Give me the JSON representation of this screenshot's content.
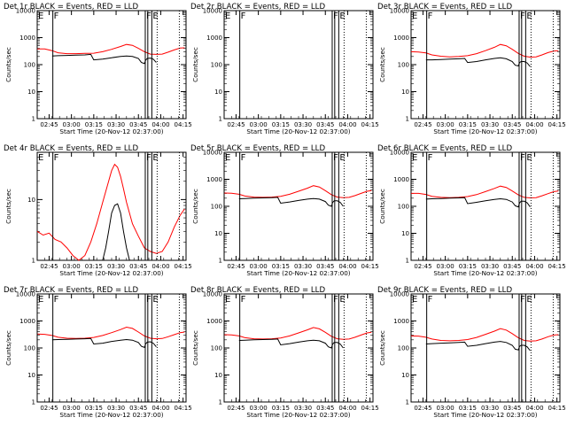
{
  "colors": {
    "events": "#000000",
    "lld": "#ff0000",
    "background": "#ffffff"
  },
  "common": {
    "xlabel": "Start Time (20-Nov-12 02:37:00)",
    "ylabel": "Counts/sec",
    "x_ticks": [
      "02:45",
      "03:00",
      "03:15",
      "03:30",
      "03:45",
      "04:00",
      "04:15"
    ],
    "x_tick_minutes": [
      8,
      23,
      38,
      53,
      68,
      83,
      98
    ],
    "x_range_minutes": [
      0,
      100
    ],
    "markers": [
      {
        "label": "E",
        "minute": 0.0,
        "style": "dotted"
      },
      {
        "label": "F",
        "minute": 10.5,
        "style": "solid"
      },
      {
        "label": "F",
        "minute": 72.6,
        "style": "solid"
      },
      {
        "label": "E",
        "minute": 77.0,
        "style": "solid"
      },
      {
        "label": "",
        "minute": 74.3,
        "style": "solid"
      },
      {
        "label": "",
        "minute": 80.6,
        "style": "dotted"
      },
      {
        "label": "",
        "minute": 95.5,
        "style": "dotted"
      }
    ]
  },
  "chart_data": [
    {
      "type": "line",
      "title": "Det 1r  BLACK = Events, RED = LLD",
      "yscale": "log",
      "ylim": [
        1,
        10000
      ],
      "y_ticks": [
        "1",
        "10",
        "100",
        "1000",
        "10000"
      ],
      "series": [
        {
          "role": "lld",
          "x": [
            0,
            5,
            10,
            14,
            20,
            26,
            32,
            38,
            44,
            50,
            56,
            60,
            64,
            68,
            72,
            76,
            80,
            84,
            88,
            92,
            96,
            99
          ],
          "y": [
            380,
            380,
            330,
            275,
            255,
            255,
            260,
            265,
            300,
            370,
            470,
            560,
            520,
            400,
            300,
            245,
            240,
            245,
            290,
            350,
            410,
            420
          ]
        },
        {
          "role": "events",
          "x": [
            10,
            14,
            20,
            26,
            32,
            36,
            38,
            44,
            50,
            56,
            60,
            64,
            68,
            70,
            72,
            73,
            74,
            76,
            78,
            80
          ],
          "y": [
            210,
            215,
            220,
            225,
            230,
            240,
            150,
            160,
            180,
            200,
            210,
            200,
            170,
            120,
            110,
            150,
            170,
            175,
            160,
            120
          ]
        }
      ]
    },
    {
      "type": "line",
      "title": "Det 2r  BLACK = Events, RED = LLD",
      "yscale": "log",
      "ylim": [
        1,
        10000
      ],
      "y_ticks": [
        "1",
        "10",
        "100",
        "1000",
        "10000"
      ],
      "series": []
    },
    {
      "type": "line",
      "title": "Det 3r  BLACK = Events, RED = LLD",
      "yscale": "log",
      "ylim": [
        1,
        10000
      ],
      "y_ticks": [
        "1",
        "10",
        "100",
        "1000",
        "10000"
      ],
      "series": [
        {
          "role": "lld",
          "x": [
            0,
            5,
            10,
            14,
            20,
            26,
            32,
            38,
            44,
            50,
            56,
            60,
            64,
            68,
            72,
            76,
            80,
            84,
            88,
            92,
            96,
            99
          ],
          "y": [
            300,
            295,
            270,
            230,
            205,
            195,
            200,
            215,
            255,
            330,
            440,
            560,
            500,
            370,
            260,
            205,
            190,
            195,
            230,
            280,
            320,
            330
          ]
        },
        {
          "role": "events",
          "x": [
            10,
            14,
            20,
            26,
            32,
            36,
            38,
            44,
            50,
            56,
            60,
            64,
            68,
            70,
            72,
            73,
            74,
            76,
            78,
            80
          ],
          "y": [
            150,
            150,
            155,
            160,
            165,
            170,
            120,
            130,
            150,
            170,
            180,
            165,
            130,
            95,
            90,
            120,
            130,
            130,
            115,
            85
          ]
        }
      ]
    },
    {
      "type": "line",
      "title": "Det 4r  BLACK = Events, RED = LLD",
      "yscale": "log",
      "ylim": [
        1,
        60
      ],
      "y_ticks": [
        "1",
        "10"
      ],
      "series": [
        {
          "role": "lld",
          "x": [
            0,
            4,
            8,
            12,
            16,
            20,
            24,
            28,
            32,
            36,
            40,
            44,
            48,
            50,
            52,
            54,
            56,
            58,
            60,
            64,
            68,
            72,
            76,
            80,
            84,
            88,
            92,
            96,
            99
          ],
          "y": [
            3,
            2.6,
            2.8,
            2.2,
            2,
            1.6,
            1.2,
            1,
            1.2,
            2,
            4,
            9,
            20,
            30,
            38,
            34,
            24,
            15,
            9,
            4,
            2.5,
            1.6,
            1.4,
            1.3,
            1.4,
            2,
            3.5,
            5.5,
            7
          ]
        },
        {
          "role": "events",
          "x": [
            44,
            46,
            48,
            50,
            52,
            54,
            56,
            58,
            60,
            62
          ],
          "y": [
            1,
            1.6,
            3,
            6,
            8,
            8.5,
            6,
            3,
            1.6,
            1
          ]
        }
      ]
    },
    {
      "type": "line",
      "title": "Det 5r  BLACK = Events, RED = LLD",
      "yscale": "log",
      "ylim": [
        1,
        10000
      ],
      "y_ticks": [
        "1",
        "10",
        "100",
        "1000",
        "10000"
      ],
      "series": [
        {
          "role": "lld",
          "x": [
            0,
            5,
            10,
            14,
            20,
            26,
            32,
            38,
            44,
            50,
            56,
            60,
            64,
            68,
            72,
            76,
            80,
            84,
            88,
            92,
            96,
            99
          ],
          "y": [
            310,
            305,
            280,
            240,
            220,
            215,
            220,
            235,
            280,
            360,
            470,
            580,
            520,
            380,
            270,
            220,
            210,
            215,
            250,
            300,
            360,
            380
          ]
        },
        {
          "role": "events",
          "x": [
            10,
            14,
            20,
            26,
            32,
            36,
            38,
            44,
            50,
            56,
            60,
            64,
            68,
            70,
            72,
            73,
            74,
            76,
            78,
            80
          ],
          "y": [
            190,
            195,
            200,
            205,
            210,
            215,
            130,
            145,
            165,
            185,
            195,
            185,
            150,
            110,
            100,
            140,
            160,
            160,
            140,
            100
          ]
        }
      ]
    },
    {
      "type": "line",
      "title": "Det 6r  BLACK = Events, RED = LLD",
      "yscale": "log",
      "ylim": [
        1,
        10000
      ],
      "y_ticks": [
        "1",
        "10",
        "100",
        "1000",
        "10000"
      ],
      "series": [
        {
          "role": "lld",
          "x": [
            0,
            5,
            10,
            14,
            20,
            26,
            32,
            38,
            44,
            50,
            56,
            60,
            64,
            68,
            72,
            76,
            80,
            84,
            88,
            92,
            96,
            99
          ],
          "y": [
            300,
            300,
            275,
            235,
            215,
            210,
            215,
            230,
            270,
            350,
            460,
            560,
            500,
            370,
            265,
            215,
            205,
            210,
            245,
            295,
            350,
            370
          ]
        },
        {
          "role": "events",
          "x": [
            10,
            14,
            20,
            26,
            32,
            36,
            38,
            44,
            50,
            56,
            60,
            64,
            68,
            70,
            72,
            73,
            74,
            76,
            78,
            80
          ],
          "y": [
            185,
            190,
            195,
            200,
            205,
            210,
            125,
            140,
            160,
            180,
            190,
            180,
            145,
            105,
            95,
            135,
            155,
            155,
            135,
            95
          ]
        }
      ]
    },
    {
      "type": "line",
      "title": "Det 7r  BLACK = Events, RED = LLD",
      "yscale": "log",
      "ylim": [
        1,
        10000
      ],
      "y_ticks": [
        "1",
        "10",
        "100",
        "1000",
        "10000"
      ],
      "series": [
        {
          "role": "lld",
          "x": [
            0,
            5,
            10,
            14,
            20,
            26,
            32,
            38,
            44,
            50,
            56,
            60,
            64,
            68,
            72,
            76,
            80,
            84,
            88,
            92,
            96,
            99
          ],
          "y": [
            330,
            320,
            290,
            250,
            230,
            225,
            230,
            245,
            290,
            370,
            480,
            590,
            530,
            390,
            280,
            230,
            220,
            225,
            260,
            310,
            370,
            390
          ]
        },
        {
          "role": "events",
          "x": [
            10,
            14,
            20,
            26,
            32,
            36,
            38,
            44,
            50,
            56,
            60,
            64,
            68,
            70,
            72,
            73,
            74,
            76,
            78,
            80
          ],
          "y": [
            200,
            205,
            210,
            215,
            220,
            225,
            140,
            150,
            175,
            195,
            205,
            195,
            160,
            115,
            105,
            145,
            165,
            170,
            150,
            110
          ]
        }
      ]
    },
    {
      "type": "line",
      "title": "Det 8r  BLACK = Events, RED = LLD",
      "yscale": "log",
      "ylim": [
        1,
        10000
      ],
      "y_ticks": [
        "1",
        "10",
        "100",
        "1000",
        "10000"
      ],
      "series": [
        {
          "role": "lld",
          "x": [
            0,
            5,
            10,
            14,
            20,
            26,
            32,
            38,
            44,
            50,
            56,
            60,
            64,
            68,
            72,
            76,
            80,
            84,
            88,
            92,
            96,
            99
          ],
          "y": [
            310,
            305,
            280,
            240,
            220,
            215,
            220,
            235,
            280,
            360,
            470,
            570,
            510,
            380,
            270,
            220,
            210,
            215,
            250,
            300,
            360,
            380
          ]
        },
        {
          "role": "events",
          "x": [
            10,
            14,
            20,
            26,
            32,
            36,
            38,
            44,
            50,
            56,
            60,
            64,
            68,
            70,
            72,
            73,
            74,
            76,
            78,
            80
          ],
          "y": [
            190,
            195,
            200,
            205,
            210,
            215,
            130,
            145,
            165,
            185,
            195,
            185,
            150,
            110,
            100,
            140,
            160,
            160,
            140,
            100
          ]
        }
      ]
    },
    {
      "type": "line",
      "title": "Det 9r  BLACK = Events, RED = LLD",
      "yscale": "log",
      "ylim": [
        1,
        10000
      ],
      "y_ticks": [
        "1",
        "10",
        "100",
        "1000",
        "10000"
      ],
      "series": [
        {
          "role": "lld",
          "x": [
            0,
            5,
            10,
            14,
            20,
            26,
            32,
            38,
            44,
            50,
            56,
            60,
            64,
            68,
            72,
            76,
            80,
            84,
            88,
            92,
            96,
            99
          ],
          "y": [
            280,
            275,
            250,
            215,
            190,
            185,
            190,
            205,
            245,
            320,
            420,
            520,
            460,
            340,
            240,
            190,
            180,
            185,
            215,
            260,
            300,
            310
          ]
        },
        {
          "role": "events",
          "x": [
            10,
            14,
            20,
            26,
            32,
            36,
            38,
            44,
            50,
            56,
            60,
            64,
            68,
            70,
            72,
            73,
            74,
            76,
            78,
            80
          ],
          "y": [
            140,
            145,
            150,
            155,
            160,
            165,
            115,
            125,
            145,
            165,
            175,
            160,
            125,
            90,
            85,
            115,
            125,
            125,
            110,
            80
          ]
        }
      ]
    }
  ]
}
